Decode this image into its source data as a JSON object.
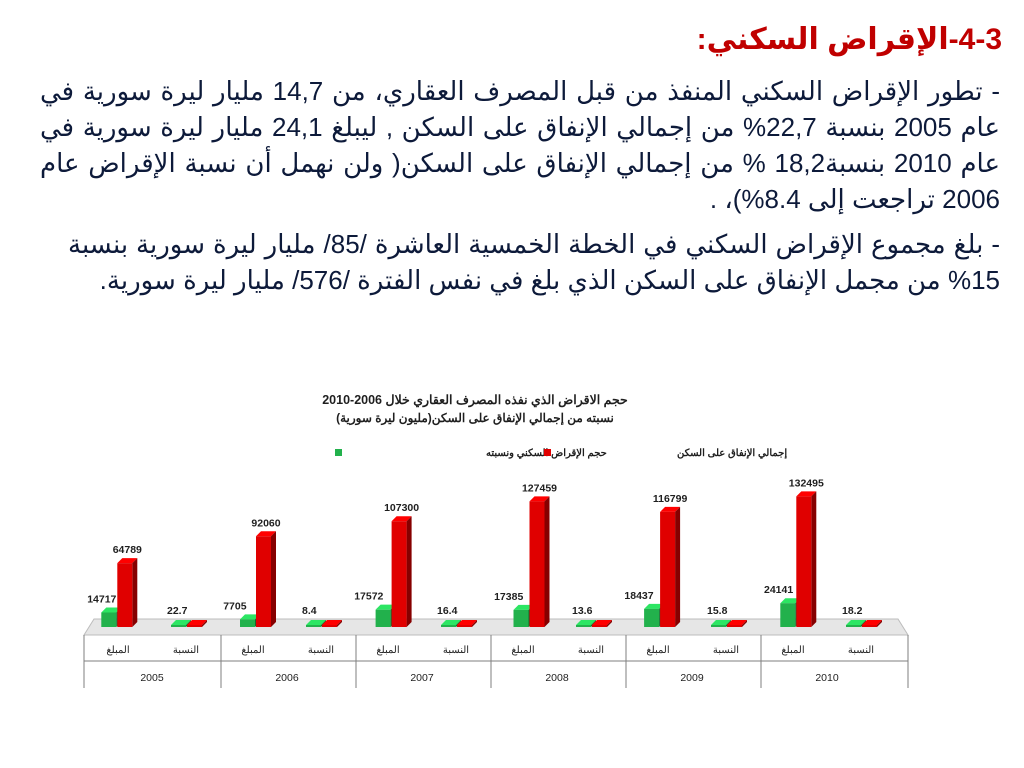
{
  "heading": "4-3-الإقراض السكني:",
  "paragraphs": [
    "- تطور الإقراض السكني المنفذ من قبل المصرف العقاري، من 14,7 مليار ليرة سورية في عام 2005 بنسبة 22,7% من إجمالي الإنفاق على السكن ,  ليبلغ 24,1 مليار ليرة سورية في عام 2010 بنسبة18,2 % من إجمالي الإنفاق على السكن( ولن نهمل أن نسبة الإقراض عام 2006 تراجعت إلى 8.4%)، .",
    "- بلغ مجموع الإقراض السكني في الخطة الخمسية العاشرة /85/ مليار ليرة سورية بنسبة 15% من مجمل الإنفاق على السكن الذي بلغ في نفس الفترة /576/ مليار ليرة سورية."
  ],
  "chart_data": {
    "type": "bar",
    "title": "حجم الاقراض الذي نفذه المصرف العقاري خلال 2006-2010",
    "subtitle": "نسبته من إجمالي الإنفاق على السكن(مليون ليرة سورية)",
    "legend": [
      {
        "name": "حجم الإقراض السكني ونسبته",
        "color": "#22b14c"
      },
      {
        "name": "إجمالي الإنفاق على السكن",
        "color": "#e00000"
      }
    ],
    "legend_position": "top",
    "years": [
      "2005",
      "2006",
      "2007",
      "2008",
      "2009",
      "2010"
    ],
    "subcategories": [
      "المبلغ",
      "النسبة"
    ],
    "series": [
      {
        "name": "حجم الإقراض السكني ونسبته",
        "color": "#22b14c",
        "values": [
          14717,
          22.7,
          7705,
          8.4,
          17572,
          16.4,
          17385,
          13.6,
          18437,
          15.8,
          24141,
          18.2
        ],
        "labels": [
          "14717",
          "22.7",
          "7705",
          "8.4",
          "17572",
          "16.4",
          "17385",
          "13.6",
          "18437",
          "15.8",
          "24141",
          "18.2"
        ]
      },
      {
        "name": "إجمالي الإنفاق على السكن",
        "color": "#e00000",
        "values": [
          64789,
          0,
          92060,
          0,
          107300,
          0,
          127459,
          0,
          116799,
          0,
          132495,
          0
        ],
        "labels": [
          "64789",
          "",
          "92060",
          "",
          "107300",
          "",
          "127459",
          "",
          "116799",
          "",
          "132495",
          ""
        ]
      }
    ],
    "ylim": [
      0,
      140000
    ],
    "grid": false
  }
}
